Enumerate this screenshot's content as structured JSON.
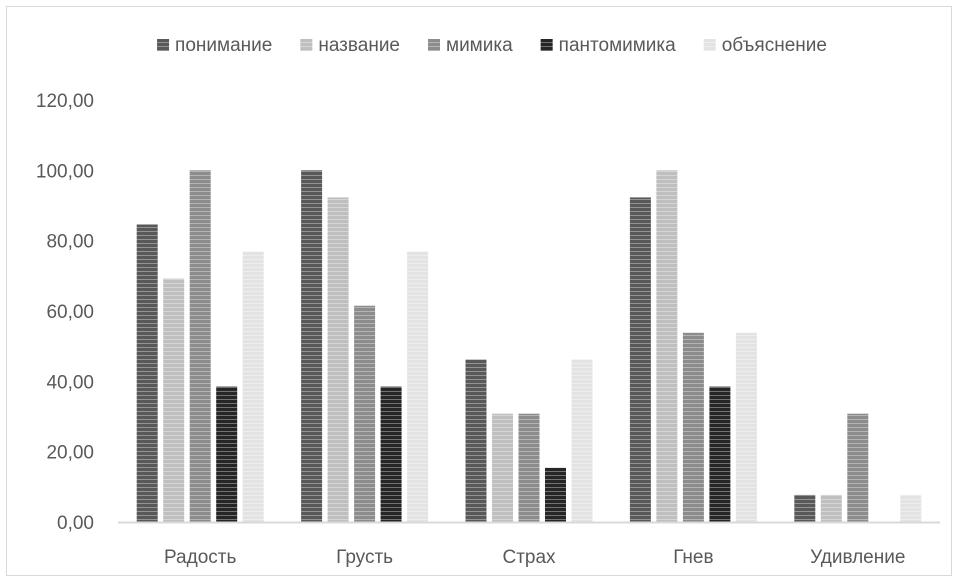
{
  "chart_data": {
    "type": "bar",
    "title": "",
    "xlabel": "",
    "ylabel": "",
    "categories": [
      "Радость",
      "Грусть",
      "Страх",
      "Гнев",
      "Удивление"
    ],
    "series": [
      {
        "name": "понимание",
        "values": [
          84.6,
          100.0,
          46.2,
          92.3,
          7.7
        ],
        "color": "#595959"
      },
      {
        "name": "название",
        "values": [
          69.2,
          92.3,
          30.8,
          100.0,
          7.7
        ],
        "color": "#bfbfbf"
      },
      {
        "name": "мимика",
        "values": [
          100.0,
          61.5,
          30.8,
          53.8,
          30.8
        ],
        "color": "#8c8c8c"
      },
      {
        "name": "пантомимика",
        "values": [
          38.5,
          38.5,
          15.4,
          38.5,
          0.0
        ],
        "color": "#262626"
      },
      {
        "name": "объяснение",
        "values": [
          76.9,
          76.9,
          46.2,
          53.8,
          7.7
        ],
        "color": "#e3e3e3"
      }
    ],
    "ylim": [
      0,
      120
    ],
    "yticks": [
      "0,00",
      "20,00",
      "40,00",
      "60,00",
      "80,00",
      "100,00",
      "120,00"
    ],
    "grid": false,
    "legend_position": "top",
    "colors": {
      "axis": "#d9d9d9",
      "text": "#595959",
      "stripe": "#ffffff"
    }
  }
}
